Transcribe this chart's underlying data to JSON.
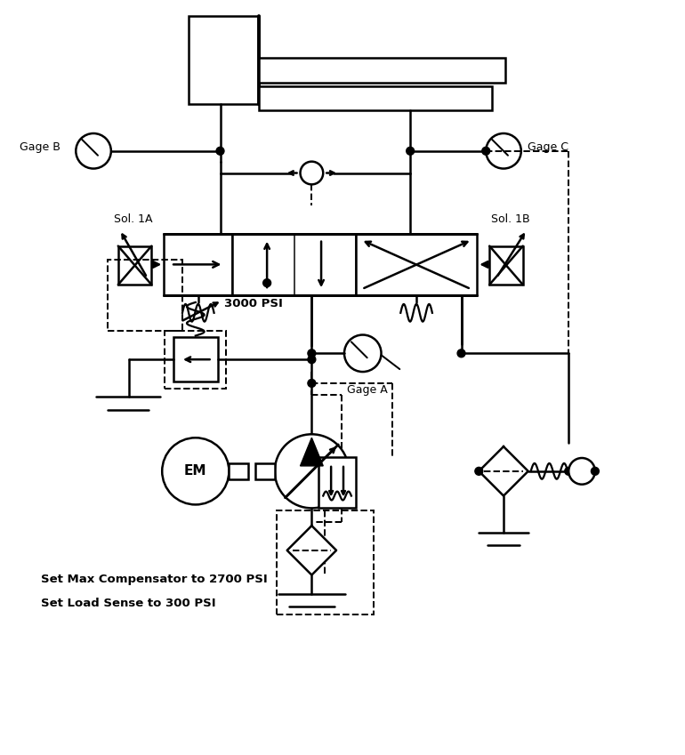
{
  "bg_color": "#ffffff",
  "line_color": "#000000",
  "dashed_color": "#000000",
  "lw": 1.8,
  "annotations": {
    "gage_b": "Gage B",
    "gage_c": "Gage C",
    "gage_a": "Gage A",
    "sol_1a": "Sol. 1A",
    "sol_1b": "Sol. 1B",
    "psi_3000": "3000 PSI",
    "em": "EM",
    "set_max": "Set Max Compensator to 2700 PSI",
    "set_load": "Set Load Sense to 300 PSI"
  }
}
